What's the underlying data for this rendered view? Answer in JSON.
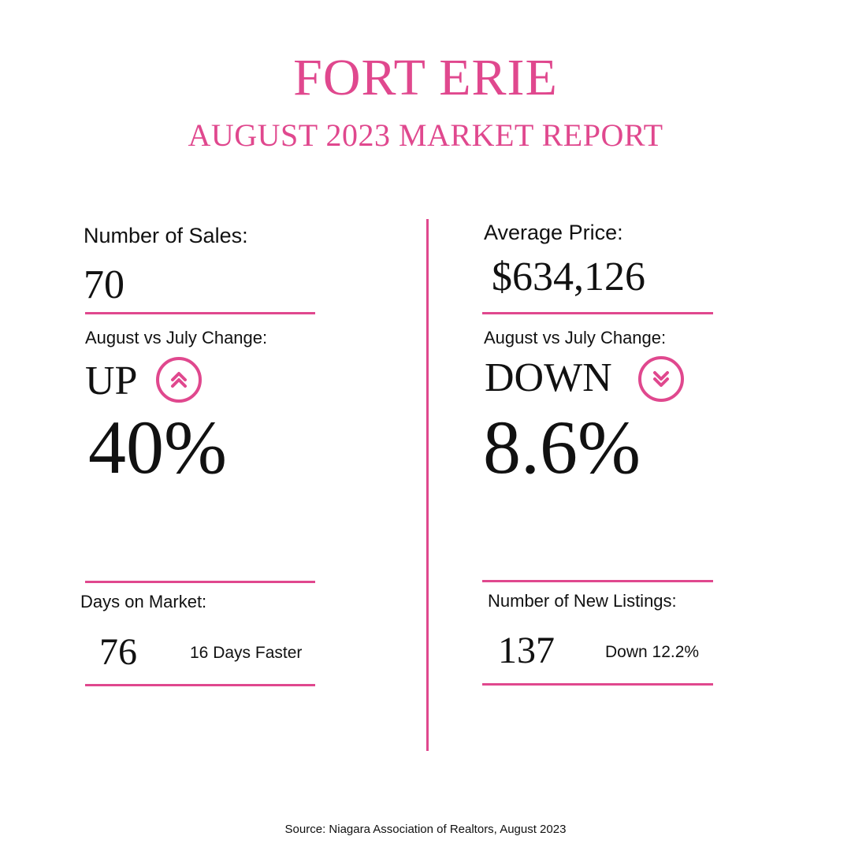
{
  "header": {
    "title": "FORT ERIE",
    "subtitle": "AUGUST 2023 MARKET REPORT"
  },
  "left": {
    "sales_label": "Number of Sales:",
    "sales_value": "70",
    "change_label": "August vs July Change:",
    "direction": "UP",
    "direction_icon": "double-chevron-up-icon",
    "percent": "40%",
    "days_label": "Days on Market:",
    "days_value": "76",
    "days_note": "16 Days Faster"
  },
  "right": {
    "price_label": "Average Price:",
    "price_value": "$634,126",
    "change_label": "August vs July Change:",
    "direction": "DOWN",
    "direction_icon": "double-chevron-down-icon",
    "percent": "8.6%",
    "listings_label": "Number of New Listings:",
    "listings_value": "137",
    "listings_note": "Down 12.2%"
  },
  "footer": {
    "source": "Source: Niagara Association of Realtors, August 2023"
  },
  "colors": {
    "accent": "#e0488e",
    "text": "#111111",
    "background": "#ffffff"
  }
}
